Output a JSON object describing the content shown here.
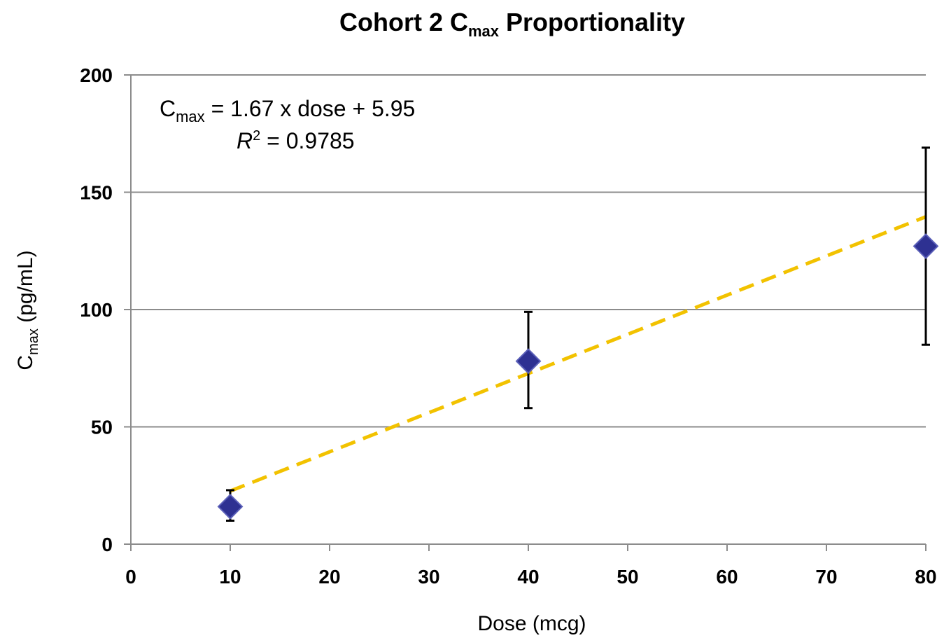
{
  "chart_data": {
    "type": "scatter",
    "title_main": "Cohort 2 C",
    "title_sub": "max",
    "title_rest": " Proportionality",
    "xlabel": "Dose (mcg)",
    "ylabel_main": "C",
    "ylabel_sub": "max",
    "ylabel_rest": " (pg/mL)",
    "xlim": [
      0,
      80
    ],
    "ylim": [
      0,
      200
    ],
    "x_ticks": [
      "0",
      "10",
      "20",
      "30",
      "40",
      "50",
      "60",
      "70",
      "80"
    ],
    "y_ticks": [
      "0",
      "50",
      "100",
      "150",
      "200"
    ],
    "grid": "horizontal",
    "points": [
      {
        "x": 10,
        "y": 16,
        "err_low": 10,
        "err_high": 23
      },
      {
        "x": 40,
        "y": 78,
        "err_low": 58,
        "err_high": 99
      },
      {
        "x": 80,
        "y": 127,
        "err_low": 85,
        "err_high": 169
      }
    ],
    "trendline": {
      "slope": 1.67,
      "intercept": 5.95,
      "x_start": 10,
      "x_end": 80,
      "style": "dashed"
    },
    "equation": {
      "line1_main": "C",
      "line1_sub": "max",
      "line1_rest": " = 1.67 x dose + 5.95",
      "line2_var": "R",
      "line2_sup": "2",
      "line2_rest": " = 0.9785"
    },
    "colors": {
      "marker": "#2E3192",
      "trendline": "#F2C200",
      "grid": "#8c8c8c",
      "errorbar": "#000000"
    }
  }
}
